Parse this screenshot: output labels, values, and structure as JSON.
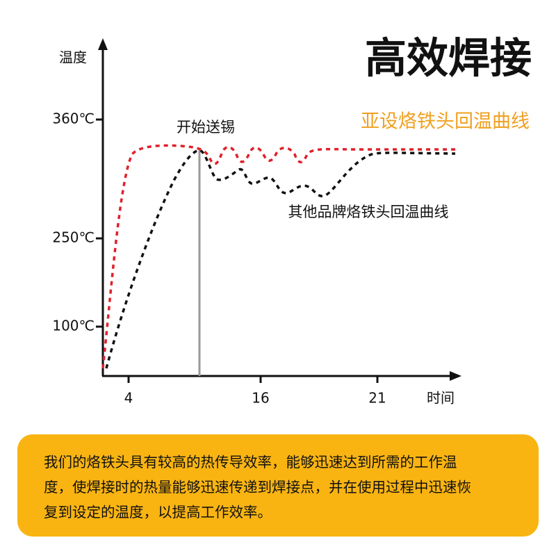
{
  "title": "高效焊接",
  "subtitle": "亚设烙铁头回温曲线",
  "y_axis_label": "温度",
  "x_axis_label": "时间",
  "y_tick_labels": [
    "360℃",
    "250℃",
    "100℃"
  ],
  "x_tick_labels": [
    "4",
    "16",
    "21"
  ],
  "annotations": {
    "start_feed": "开始送锡",
    "other_curve": "其他品牌烙铁头回温曲线"
  },
  "description": [
    "我们的烙铁头具有较高的热传导效率，能够迅速达到所需的工作温",
    "度，使焊接时的热量能够迅速传递到焊接点，并在使用过程中迅速恢",
    "复到设定的温度，以提高工作效率。"
  ]
}
